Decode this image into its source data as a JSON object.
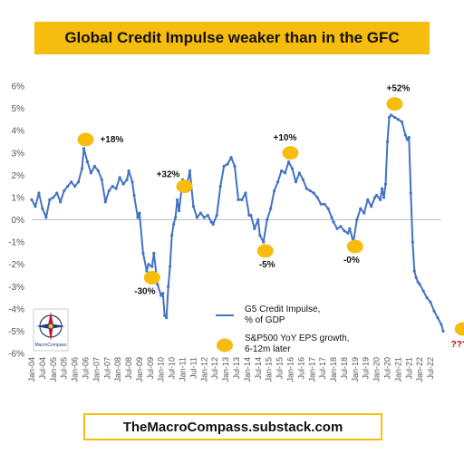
{
  "title": "Global Credit Impulse weaker than in the GFC",
  "footer": "TheMacroCompass.substack.com",
  "logo_text": "The MacroCompass",
  "chart_data": {
    "type": "line",
    "ylim": [
      -6,
      6
    ],
    "y_ticks": [
      "6%",
      "5%",
      "4%",
      "3%",
      "2%",
      "1%",
      "0%",
      "-1%",
      "-2%",
      "-3%",
      "-4%",
      "-5%",
      "-6%"
    ],
    "x_ticks": [
      "Jan-04",
      "Jul-04",
      "Jan-05",
      "Jul-05",
      "Jan-06",
      "Jul-06",
      "Jan-07",
      "Jul-07",
      "Jan-08",
      "Jul-08",
      "Jan-09",
      "Jul-09",
      "Jan-10",
      "Jul-10",
      "Jan-11",
      "Jul-11",
      "Jan-12",
      "Jul-12",
      "Jan-13",
      "Jul-13",
      "Jan-14",
      "Jul-14",
      "Jan-15",
      "Jul-15",
      "Jan-16",
      "Jul-16",
      "Jan-17",
      "Jul-17",
      "Jan-18",
      "Jul-18",
      "Jan-19",
      "Jul-19",
      "Jan-20",
      "Jul-20",
      "Jan-21",
      "Jul-21",
      "Jan-22",
      "Jul-22"
    ],
    "series": [
      {
        "name": "G5 Credit Impulse, % of GDP",
        "color": "#4472c4",
        "points": [
          [
            0,
            0.9
          ],
          [
            2,
            0.6
          ],
          [
            4,
            1.2
          ],
          [
            6,
            0.5
          ],
          [
            8,
            0.1
          ],
          [
            10,
            0.9
          ],
          [
            12,
            1.0
          ],
          [
            14,
            1.2
          ],
          [
            16,
            0.8
          ],
          [
            18,
            1.3
          ],
          [
            20,
            1.5
          ],
          [
            22,
            1.7
          ],
          [
            24,
            1.5
          ],
          [
            26,
            1.7
          ],
          [
            28,
            2.3
          ],
          [
            29,
            3.2
          ],
          [
            31,
            2.6
          ],
          [
            33,
            2.1
          ],
          [
            35,
            2.4
          ],
          [
            37,
            2.2
          ],
          [
            39,
            1.8
          ],
          [
            41,
            0.8
          ],
          [
            43,
            1.3
          ],
          [
            45,
            1.5
          ],
          [
            47,
            1.4
          ],
          [
            49,
            1.9
          ],
          [
            51,
            1.6
          ],
          [
            53,
            1.8
          ],
          [
            54,
            2.2
          ],
          [
            56,
            1.7
          ],
          [
            57,
            1.1
          ],
          [
            59,
            0.1
          ],
          [
            60,
            0.3
          ],
          [
            62,
            -1.5
          ],
          [
            64,
            -2.3
          ],
          [
            65,
            -2.0
          ],
          [
            67,
            -2.1
          ],
          [
            68,
            -1.5
          ],
          [
            70,
            -2.9
          ],
          [
            72,
            -3.4
          ],
          [
            73,
            -3.3
          ],
          [
            74,
            -4.3
          ],
          [
            75,
            -4.4
          ],
          [
            76,
            -3.0
          ],
          [
            77,
            -2.1
          ],
          [
            78,
            -0.7
          ],
          [
            79,
            -0.2
          ],
          [
            80,
            0.1
          ],
          [
            81,
            0.9
          ],
          [
            82,
            0.4
          ],
          [
            84,
            1.8
          ],
          [
            86,
            1.4
          ],
          [
            88,
            2.2
          ],
          [
            90,
            0.6
          ],
          [
            92,
            0.1
          ],
          [
            94,
            0.3
          ],
          [
            96,
            0.1
          ],
          [
            98,
            0.2
          ],
          [
            100,
            -0.1
          ],
          [
            101,
            -0.2
          ],
          [
            103,
            0.2
          ],
          [
            105,
            1.5
          ],
          [
            107,
            2.4
          ],
          [
            109,
            2.5
          ],
          [
            111,
            2.8
          ],
          [
            113,
            2.4
          ],
          [
            115,
            0.9
          ],
          [
            117,
            0.9
          ],
          [
            119,
            1.2
          ],
          [
            121,
            0.2
          ],
          [
            122,
            0.2
          ],
          [
            124,
            -0.4
          ],
          [
            126,
            0.0
          ],
          [
            127,
            -0.7
          ],
          [
            129,
            -1.0
          ],
          [
            131,
            0.0
          ],
          [
            133,
            0.5
          ],
          [
            135,
            1.3
          ],
          [
            137,
            1.7
          ],
          [
            139,
            2.2
          ],
          [
            141,
            2.1
          ],
          [
            143,
            2.6
          ],
          [
            145,
            2.3
          ],
          [
            147,
            1.7
          ],
          [
            149,
            2.1
          ],
          [
            151,
            1.8
          ],
          [
            153,
            1.4
          ],
          [
            155,
            1.3
          ],
          [
            157,
            1.2
          ],
          [
            159,
            1.0
          ],
          [
            161,
            0.7
          ],
          [
            163,
            0.7
          ],
          [
            165,
            0.5
          ],
          [
            167,
            0.1
          ],
          [
            168,
            -0.1
          ],
          [
            170,
            -0.4
          ],
          [
            172,
            -0.3
          ],
          [
            174,
            -0.5
          ],
          [
            176,
            -0.6
          ],
          [
            177,
            -0.4
          ],
          [
            179,
            -1.0
          ],
          [
            181,
            0.0
          ],
          [
            183,
            0.5
          ],
          [
            185,
            0.3
          ],
          [
            187,
            0.9
          ],
          [
            189,
            0.6
          ],
          [
            191,
            1.0
          ],
          [
            192,
            1.1
          ],
          [
            194,
            0.9
          ],
          [
            195,
            1.4
          ],
          [
            196,
            1.0
          ],
          [
            197,
            1.6
          ],
          [
            198,
            3.5
          ],
          [
            199,
            4.6
          ],
          [
            200,
            4.7
          ],
          [
            202,
            4.6
          ],
          [
            204,
            4.5
          ],
          [
            206,
            4.4
          ],
          [
            208,
            3.8
          ],
          [
            209,
            3.6
          ],
          [
            210,
            3.7
          ],
          [
            211,
            1.2
          ],
          [
            212,
            -1.0
          ],
          [
            213,
            -2.3
          ],
          [
            214,
            -2.6
          ],
          [
            215,
            -2.8
          ],
          [
            216,
            -2.9
          ],
          [
            218,
            -3.2
          ],
          [
            220,
            -3.5
          ],
          [
            222,
            -3.7
          ],
          [
            224,
            -4.1
          ],
          [
            226,
            -4.4
          ],
          [
            228,
            -4.7
          ],
          [
            229,
            -5.0
          ]
        ]
      },
      {
        "name": "S&P500 YoY EPS growth, 6-12m later",
        "color": "#f6bd0e",
        "points": [
          {
            "x": 30,
            "y": 3.6,
            "label": "+18%"
          },
          {
            "x": 67,
            "y": -2.6,
            "label": "-30%"
          },
          {
            "x": 85,
            "y": 1.5,
            "label": "+32%"
          },
          {
            "x": 130,
            "y": -1.4,
            "label": "-5%"
          },
          {
            "x": 144,
            "y": 3.0,
            "label": "+10%"
          },
          {
            "x": 180,
            "y": -1.2,
            "label": "-0%"
          },
          {
            "x": 202,
            "y": 5.2,
            "label": "+52%"
          },
          {
            "x": 240,
            "y": -4.9,
            "label": "???"
          }
        ]
      }
    ],
    "legend": [
      {
        "label_lines": [
          "G5 Credit Impulse,",
          "% of GDP"
        ]
      },
      {
        "label_lines": [
          "S&P500 YoY EPS growth,",
          "6-12m later"
        ]
      }
    ]
  }
}
